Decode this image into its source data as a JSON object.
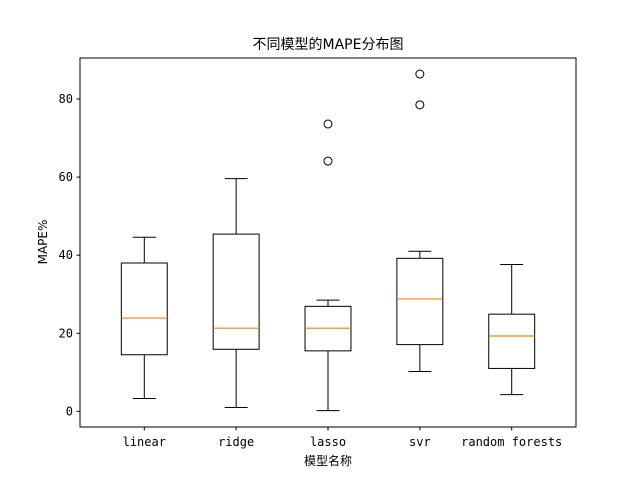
{
  "chart_data": {
    "type": "box",
    "title": "不同模型的MAPE分布图",
    "xlabel": "模型名称",
    "ylabel": "MAPE%",
    "ylim": [
      -4,
      90.5
    ],
    "yticks": [
      0,
      20,
      40,
      60,
      80
    ],
    "grid": false,
    "categories": [
      "linear",
      "ridge",
      "lasso",
      "svr",
      "random forests"
    ],
    "boxes": [
      {
        "name": "linear",
        "whisker_low": 3.3,
        "q1": 14.5,
        "median": 23.9,
        "q3": 38.0,
        "whisker_high": 44.6,
        "fliers": []
      },
      {
        "name": "ridge",
        "whisker_low": 1.0,
        "q1": 15.9,
        "median": 21.3,
        "q3": 45.4,
        "whisker_high": 59.6,
        "fliers": []
      },
      {
        "name": "lasso",
        "whisker_low": 0.2,
        "q1": 15.5,
        "median": 21.3,
        "q3": 26.9,
        "whisker_high": 28.5,
        "fliers": [
          64.1,
          73.6
        ]
      },
      {
        "name": "svr",
        "whisker_low": 10.2,
        "q1": 17.1,
        "median": 28.8,
        "q3": 39.2,
        "whisker_high": 41.0,
        "fliers": [
          78.5,
          86.4
        ]
      },
      {
        "name": "random forests",
        "whisker_low": 4.3,
        "q1": 11.0,
        "median": 19.3,
        "q3": 24.9,
        "whisker_high": 37.6,
        "fliers": []
      }
    ]
  }
}
